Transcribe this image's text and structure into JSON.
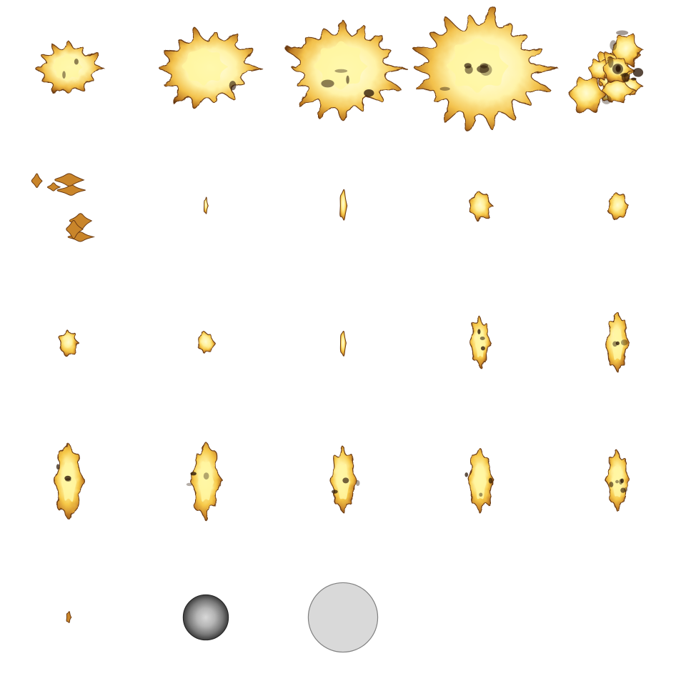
{
  "sprite_sheet": {
    "grid": {
      "columns": 5,
      "rows": 5
    },
    "colors": {
      "background": "#ffffff",
      "flame_core": "#fff6a0",
      "flame_mid": "#f6c848",
      "flame_outer": "#c9852a",
      "flame_edge": "#6b3a12",
      "char": "#2a1606",
      "ball_outer": "#5a5a5a",
      "ball_inner": "#d6d6d6",
      "disc_fill": "#d9d9d9",
      "disc_stroke": "#808080"
    },
    "frames": [
      {
        "id": 1,
        "kind": "explosion",
        "size": 0.38,
        "spikes": 12,
        "spread": 0.55,
        "char": 0.15
      },
      {
        "id": 2,
        "kind": "explosion",
        "size": 0.55,
        "spikes": 14,
        "spread": 0.6,
        "char": 0.1
      },
      {
        "id": 3,
        "kind": "explosion",
        "size": 0.68,
        "spikes": 16,
        "spread": 0.6,
        "char": 0.25
      },
      {
        "id": 4,
        "kind": "explosion",
        "size": 0.78,
        "spikes": 18,
        "spread": 0.6,
        "char": 0.45
      },
      {
        "id": 5,
        "kind": "explosion_breakup",
        "size": 0.8,
        "pieces": 12
      },
      {
        "id": 6,
        "kind": "debris",
        "pieces": 7
      },
      {
        "id": 7,
        "kind": "flame_sliver",
        "size": 0.12
      },
      {
        "id": 8,
        "kind": "flame_sliver",
        "size": 0.22
      },
      {
        "id": 9,
        "kind": "flame_small",
        "size": 0.28
      },
      {
        "id": 10,
        "kind": "flame_small",
        "size": 0.26
      },
      {
        "id": 11,
        "kind": "flame_small",
        "size": 0.24
      },
      {
        "id": 12,
        "kind": "flame_small",
        "size": 0.2
      },
      {
        "id": 13,
        "kind": "flame_thin",
        "size": 0.18
      },
      {
        "id": 14,
        "kind": "flame_tall",
        "size": 0.35
      },
      {
        "id": 15,
        "kind": "flame_tall",
        "size": 0.42
      },
      {
        "id": 16,
        "kind": "flame_tall",
        "size": 0.52
      },
      {
        "id": 17,
        "kind": "flame_tall",
        "size": 0.52
      },
      {
        "id": 18,
        "kind": "flame_tall",
        "size": 0.46
      },
      {
        "id": 19,
        "kind": "flame_tall",
        "size": 0.44
      },
      {
        "id": 20,
        "kind": "flame_lick",
        "size": 0.4
      },
      {
        "id": 21,
        "kind": "ember",
        "size": 0.12
      },
      {
        "id": 22,
        "kind": "glow_ball",
        "size": 0.6
      },
      {
        "id": 23,
        "kind": "disc",
        "size": 0.92
      },
      {
        "id": 24,
        "kind": "empty"
      },
      {
        "id": 25,
        "kind": "empty"
      }
    ]
  }
}
